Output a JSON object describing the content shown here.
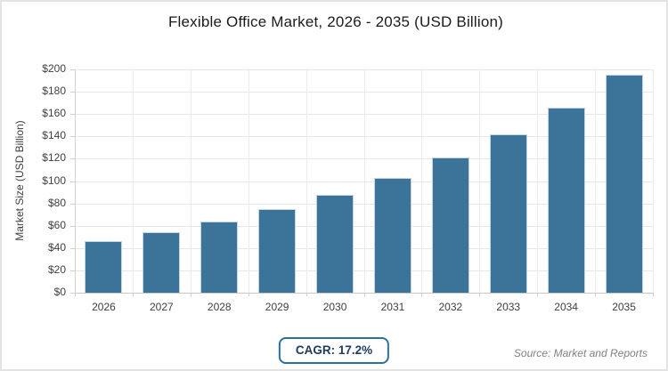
{
  "chart_data": {
    "type": "bar",
    "title": "Flexible Office Market, 2026 - 2035 (USD Billion)",
    "categories": [
      "2026",
      "2027",
      "2028",
      "2029",
      "2030",
      "2031",
      "2032",
      "2033",
      "2034",
      "2035"
    ],
    "values": [
      46,
      54,
      64,
      75,
      88,
      103,
      121,
      142,
      166,
      195
    ],
    "xlabel": "",
    "ylabel": "Market Size (USD Billion)",
    "ylim": [
      0,
      200
    ],
    "ytick_values": [
      0,
      20,
      40,
      60,
      80,
      100,
      120,
      140,
      160,
      180,
      200
    ],
    "ytick_labels": [
      "$0",
      "$20",
      "$40",
      "$60",
      "$80",
      "$100",
      "$120",
      "$140",
      "$160",
      "$180",
      "$200"
    ],
    "grid": true,
    "legend": false,
    "bar_color": "#3c7399"
  },
  "footer": {
    "cagr_label": "CAGR: 17.2%",
    "source": "Source: Market and Reports"
  },
  "colors": {
    "bar": "#3c7399",
    "badge_border": "#2e6f9e",
    "badge_text": "#1e3a5f",
    "grid_line": "#e7e7e7",
    "axis_line": "#c9c9c9",
    "tick_text": "#3f3f3f",
    "title_text": "#1b1b1b",
    "source_text": "#818181"
  }
}
